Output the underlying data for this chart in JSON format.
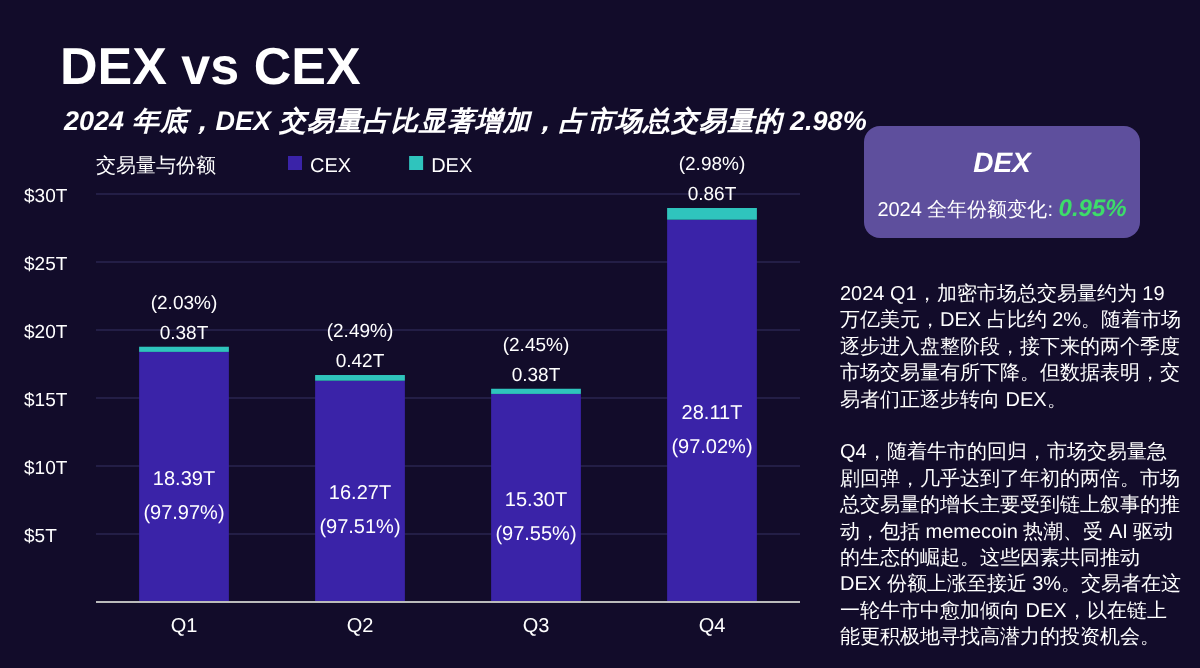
{
  "chart_data": [
    {
      "type": "bar",
      "title": "DEX vs CEX",
      "subtitle": "2024 年底，DEX 交易量占比显著增加，占市场总交易量的 2.98%",
      "legend_title": "交易量与份额",
      "categories": [
        "Q1",
        "Q2",
        "Q3",
        "Q4"
      ],
      "stacked": true,
      "legend": "top left",
      "grid": "y",
      "ylim": [
        0,
        30
      ],
      "annotations": [
        "(97.97%)",
        "(97.51%)",
        "(97.55%)",
        "(97.02%)",
        "(2.03%)",
        "(2.49%)",
        "(2.45%)",
        "(2.98%)"
      ],
      "yticks": [
        {
          "value": 5,
          "label": "$5T"
        },
        {
          "value": 10,
          "label": "$10T"
        },
        {
          "value": 15,
          "label": "$15T"
        },
        {
          "value": 20,
          "label": "$20T"
        },
        {
          "value": 25,
          "label": "$25T"
        },
        {
          "value": 30,
          "label": "$30T"
        }
      ],
      "series": [
        {
          "name": "CEX",
          "color": "#3a23a8",
          "values": [
            18.39,
            16.27,
            15.3,
            28.11
          ],
          "value_labels": [
            "18.39T",
            "16.27T",
            "15.30T",
            "28.11T"
          ]
        },
        {
          "name": "DEX",
          "color": "#2fc4bd",
          "values": [
            0.38,
            0.42,
            0.38,
            0.86
          ],
          "value_labels": [
            "0.38T",
            "0.42T",
            "0.38T",
            "0.86T"
          ]
        }
      ]
    },
    {
      "type": "other",
      "title": "DEX",
      "annotations": [
        "2024 全年份额变化: 0.95%",
        "2024 Q1，加密市场总交易量约为 19 万亿美元，DEX 占比约 2%。随着市场逐步进入盘整阶段，接下来的两个季度市场交易量有所下降。但数据表明，交易者们正逐步转向 DEX。",
        "Q4，随着牛市的回归，市场交易量急剧回弹，几乎达到了年初的两倍。市场总交易量的增长主要受到链上叙事的推动，包括 memecoin 热潮、受 AI 驱动的生态的崛起。这些因素共同推动 DEX 份额上涨至接近 3%。交易者在这一轮牛市中愈加倾向 DEX，以在链上能更积极地寻找高潜力的投资机会。"
      ]
    }
  ]
}
